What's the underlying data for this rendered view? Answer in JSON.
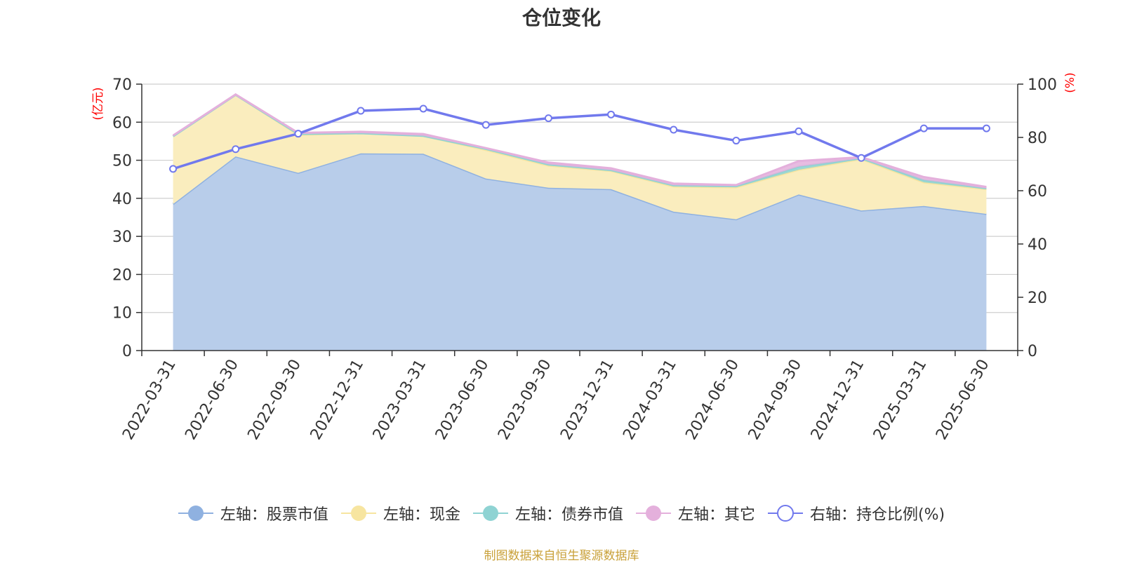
{
  "title": "仓位变化",
  "source_note": "制图数据来自恒生聚源数据库",
  "colors": {
    "stock": "#8fb1e0",
    "stock_fill": "#b8cdea",
    "cash": "#f7e5a0",
    "cash_fill": "#faedbe",
    "bond": "#8fd3d3",
    "other": "#e4b0dc",
    "ratio": "#7179ed",
    "axis": "#333333",
    "grid": "#cfcfcf",
    "unit_label": "#ff0000"
  },
  "chart_data": {
    "type": "area",
    "x": [
      "2022-03-31",
      "2022-06-30",
      "2022-09-30",
      "2022-12-31",
      "2023-03-31",
      "2023-06-30",
      "2023-09-30",
      "2023-12-31",
      "2024-03-31",
      "2024-06-30",
      "2024-09-30",
      "2024-12-31",
      "2025-03-31",
      "2025-06-30"
    ],
    "y_left": {
      "unit": "(亿元)",
      "min": 0,
      "max": 70,
      "ticks": [
        0,
        10,
        20,
        30,
        40,
        50,
        60,
        70
      ]
    },
    "y_right": {
      "unit": "(%)",
      "min": 0,
      "max": 100,
      "ticks": [
        0,
        20,
        40,
        60,
        80,
        100
      ]
    },
    "stacked_series": [
      {
        "key": "stock",
        "name": "左轴：股票市值",
        "axis": "left",
        "values": [
          38.5,
          51.0,
          46.7,
          51.8,
          51.7,
          45.2,
          42.8,
          42.4,
          36.5,
          34.5,
          41.0,
          36.8,
          38.0,
          35.9
        ]
      },
      {
        "key": "cash",
        "name": "左轴：现金",
        "axis": "left",
        "values": [
          17.8,
          16.2,
          10.0,
          5.3,
          4.7,
          7.5,
          5.8,
          4.8,
          6.6,
          8.4,
          6.5,
          13.5,
          6.2,
          6.5
        ]
      },
      {
        "key": "bond",
        "name": "左轴：债券市值",
        "axis": "left",
        "values": [
          0,
          0,
          0.2,
          0,
          0,
          0.3,
          0.3,
          0.2,
          0.3,
          0.3,
          0.8,
          0.2,
          0.6,
          0.2
        ]
      },
      {
        "key": "other",
        "name": "左轴：其它",
        "axis": "left",
        "values": [
          0.2,
          0.1,
          0.3,
          0.4,
          0.5,
          0.2,
          0.5,
          0.5,
          0.5,
          0.3,
          1.5,
          0.3,
          0.8,
          0.4
        ]
      }
    ],
    "line_series": {
      "key": "ratio",
      "name": "右轴：持仓比例(%)",
      "axis": "right",
      "values": [
        68.2,
        75.6,
        81.4,
        90.0,
        90.8,
        84.7,
        87.2,
        88.6,
        82.9,
        78.8,
        82.3,
        72.3,
        83.4,
        83.4
      ]
    },
    "legend_position": "bottom",
    "grid": true
  }
}
